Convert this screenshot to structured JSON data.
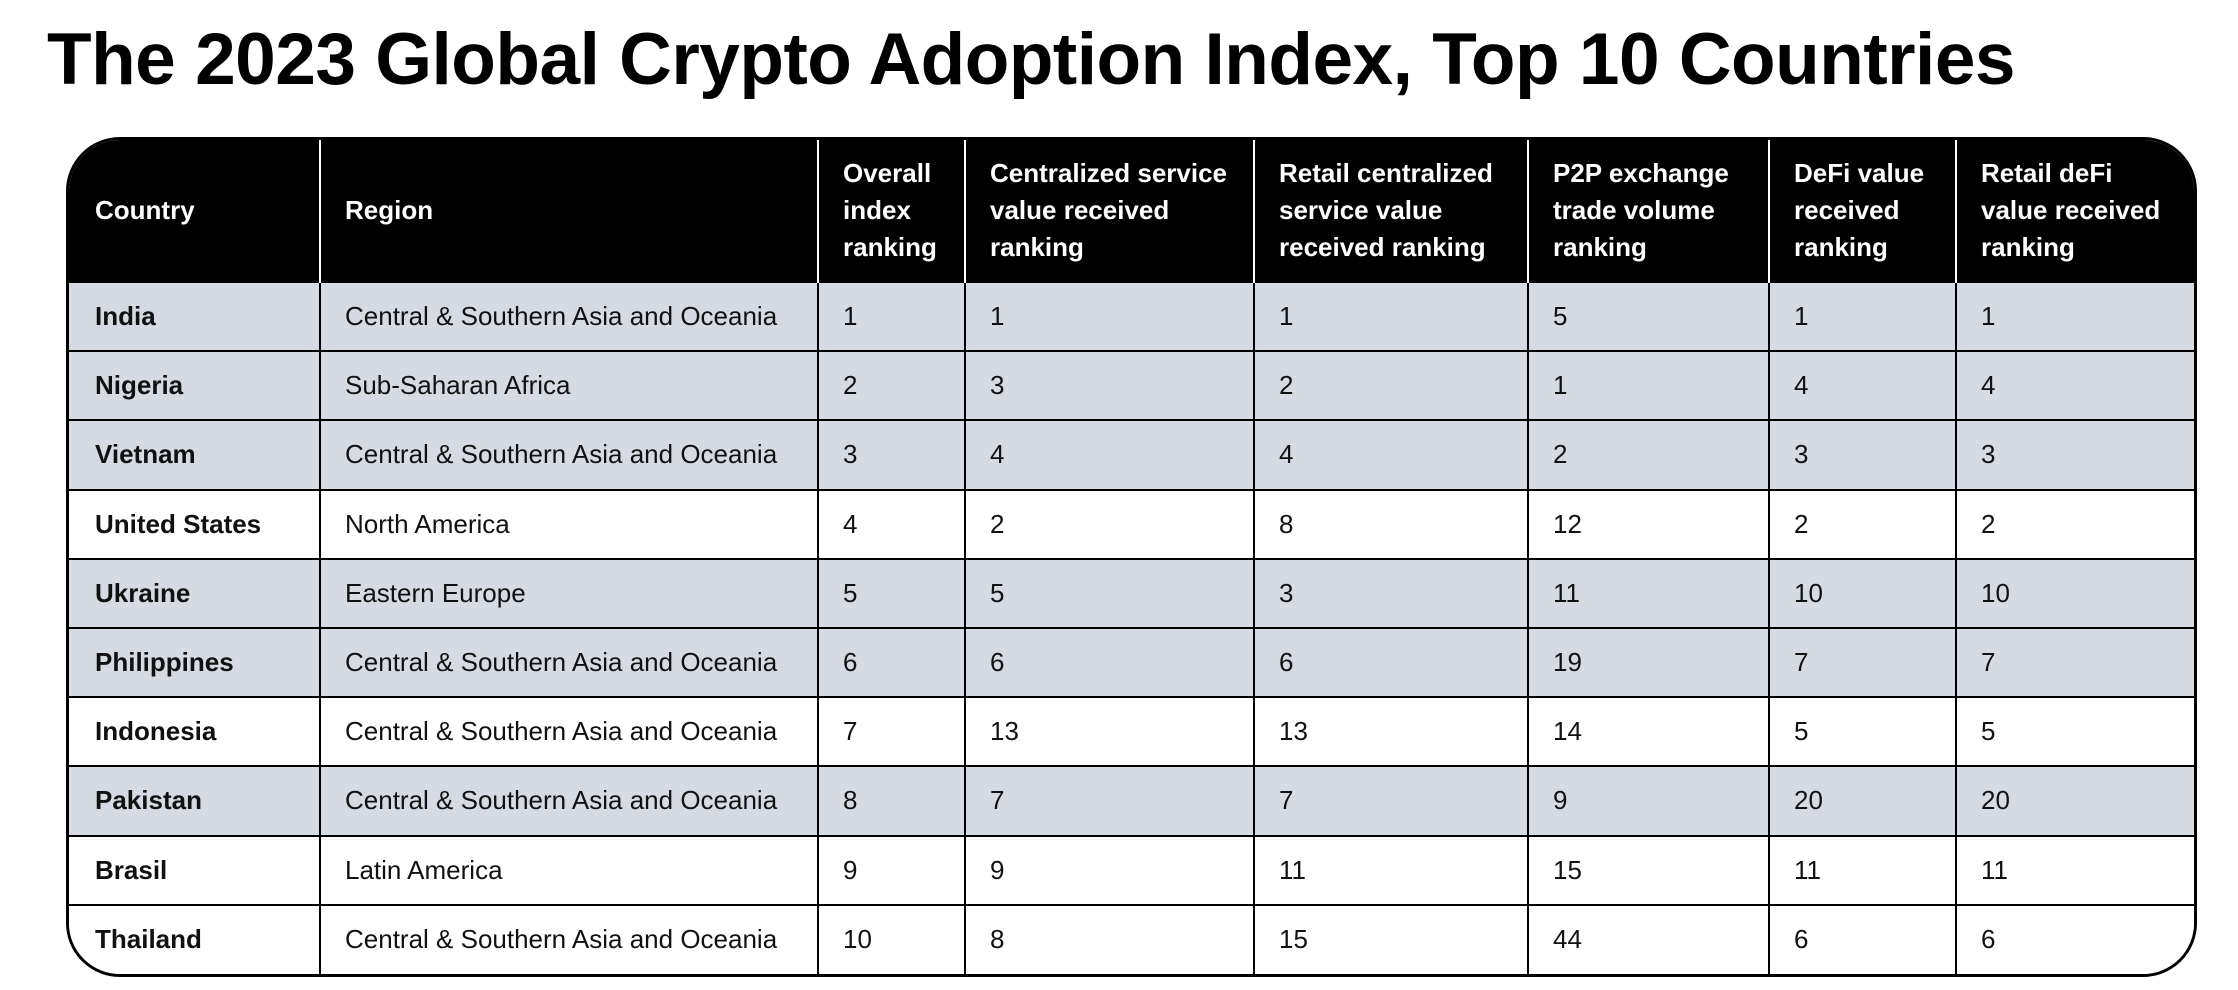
{
  "title": "The 2023 Global Crypto Adoption Index, Top 10 Countries",
  "colors": {
    "header_background": "#000000",
    "header_text": "#ffffff",
    "shaded_row": "#d6dbe3",
    "plain_row": "#ffffff"
  },
  "table": {
    "headers": [
      "Country",
      "Region",
      "Overall index ranking",
      "Centralized service value received ranking",
      "Retail centralized service value received ranking",
      "P2P exchange trade volume ranking",
      "DeFi value received ranking",
      "Retail deFi value received ranking"
    ],
    "rows": [
      {
        "shaded": true,
        "cells": [
          "India",
          "Central & Southern Asia and Oceania",
          "1",
          "1",
          "1",
          "5",
          "1",
          "1"
        ]
      },
      {
        "shaded": true,
        "cells": [
          "Nigeria",
          "Sub-Saharan Africa",
          "2",
          "3",
          "2",
          "1",
          "4",
          "4"
        ]
      },
      {
        "shaded": true,
        "cells": [
          "Vietnam",
          "Central & Southern Asia and Oceania",
          "3",
          "4",
          "4",
          "2",
          "3",
          "3"
        ]
      },
      {
        "shaded": false,
        "cells": [
          "United States",
          "North America",
          "4",
          "2",
          "8",
          "12",
          "2",
          "2"
        ]
      },
      {
        "shaded": true,
        "cells": [
          "Ukraine",
          "Eastern Europe",
          "5",
          "5",
          "3",
          "11",
          "10",
          "10"
        ]
      },
      {
        "shaded": true,
        "cells": [
          "Philippines",
          "Central & Southern Asia and Oceania",
          "6",
          "6",
          "6",
          "19",
          "7",
          "7"
        ]
      },
      {
        "shaded": false,
        "cells": [
          "Indonesia",
          "Central & Southern Asia and Oceania",
          "7",
          "13",
          "13",
          "14",
          "5",
          "5"
        ]
      },
      {
        "shaded": true,
        "cells": [
          "Pakistan",
          "Central & Southern Asia and Oceania",
          "8",
          "7",
          "7",
          "9",
          "20",
          "20"
        ]
      },
      {
        "shaded": false,
        "cells": [
          "Brasil",
          "Latin America",
          "9",
          "9",
          "11",
          "15",
          "11",
          "11"
        ]
      },
      {
        "shaded": false,
        "cells": [
          "Thailand",
          "Central & Southern Asia and Oceania",
          "10",
          "8",
          "15",
          "44",
          "6",
          "6"
        ]
      }
    ]
  }
}
